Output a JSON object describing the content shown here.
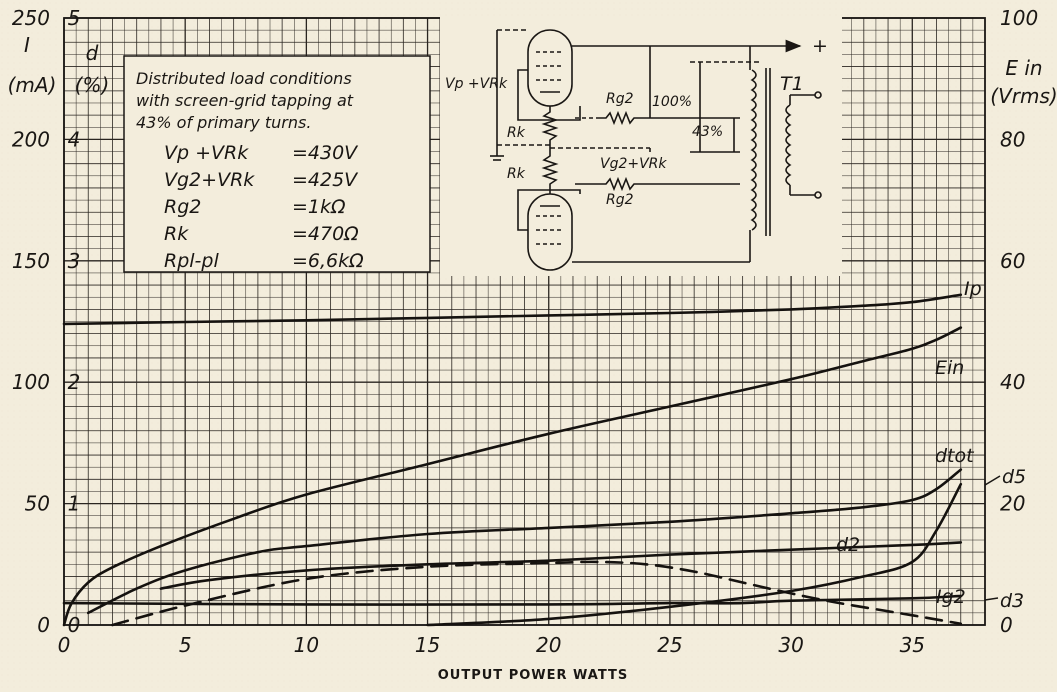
{
  "chart_data": {
    "type": "line",
    "xlabel": "OUTPUT POWER WATTS",
    "xlim": [
      0,
      38
    ],
    "x_ticks": [
      "0",
      "5",
      "10",
      "15",
      "20",
      "25",
      "30",
      "35"
    ],
    "axes": {
      "current": {
        "label_symbol": "I",
        "label_unit": "(mA)",
        "range": [
          0,
          250
        ],
        "ticks": [
          "0",
          "50",
          "100",
          "150",
          "200",
          "250"
        ]
      },
      "distortion": {
        "label_symbol": "d",
        "label_unit": "(%)",
        "range": [
          0,
          5
        ],
        "ticks": [
          "0",
          "1",
          "2",
          "3",
          "4",
          "5"
        ]
      },
      "input_voltage": {
        "label_symbol": "E in",
        "label_unit": "(Vrms)",
        "range": [
          0,
          100
        ],
        "ticks": [
          "0",
          "20",
          "40",
          "60",
          "80",
          "100"
        ]
      }
    },
    "grid": true,
    "series": [
      {
        "name": "Ip",
        "axis": "current",
        "style": "solid",
        "x": [
          0,
          5,
          10,
          15,
          20,
          25,
          30,
          33,
          35,
          37
        ],
        "y": [
          124,
          124.8,
          125.5,
          126.5,
          127.5,
          128.5,
          130,
          131.5,
          133,
          136
        ]
      },
      {
        "name": "Ein",
        "axis": "input_voltage",
        "style": "solid",
        "x": [
          0,
          0.3,
          1,
          2,
          4,
          7,
          10,
          15,
          20,
          25,
          30,
          33,
          35,
          36,
          37
        ],
        "y": [
          0,
          3.5,
          7,
          9.5,
          13,
          17.5,
          21.5,
          26.5,
          31.5,
          36,
          40.5,
          43.5,
          45.5,
          47,
          49
        ]
      },
      {
        "name": "dtot",
        "axis": "distortion",
        "style": "solid",
        "x": [
          1,
          3,
          5,
          8,
          10,
          15,
          20,
          25,
          30,
          33,
          35,
          36,
          37
        ],
        "y": [
          0.1,
          0.3,
          0.45,
          0.6,
          0.65,
          0.75,
          0.8,
          0.85,
          0.92,
          0.97,
          1.03,
          1.12,
          1.28
        ]
      },
      {
        "name": "d5",
        "axis": "distortion",
        "style": "solid",
        "x": [
          15,
          20,
          25,
          30,
          33,
          35,
          36,
          37
        ],
        "y": [
          0,
          0.05,
          0.15,
          0.28,
          0.4,
          0.52,
          0.78,
          1.16
        ]
      },
      {
        "name": "d2",
        "axis": "distortion",
        "style": "solid",
        "x": [
          4,
          6,
          10,
          15,
          20,
          25,
          30,
          35,
          37
        ],
        "y": [
          0.3,
          0.37,
          0.45,
          0.5,
          0.53,
          0.58,
          0.62,
          0.66,
          0.68
        ]
      },
      {
        "name": "Ig2",
        "axis": "current",
        "style": "dashed",
        "x": [
          2,
          5,
          10,
          15,
          20,
          22,
          24,
          26,
          28,
          30,
          32,
          35,
          37
        ],
        "y": [
          0,
          8,
          19,
          24,
          25.5,
          26,
          25,
          22,
          17.5,
          13,
          9,
          4,
          0.5
        ]
      },
      {
        "name": "d3",
        "axis": "distortion",
        "style": "solid",
        "x": [
          0,
          10,
          20,
          25,
          28,
          30,
          35,
          37
        ],
        "y": [
          0.18,
          0.17,
          0.17,
          0.18,
          0.18,
          0.2,
          0.22,
          0.24
        ]
      }
    ],
    "curve_labels": [
      "Ip",
      "Ein",
      "dtot",
      "d5",
      "d2",
      "Ig2",
      "d3"
    ]
  },
  "conditions_box": {
    "lines": [
      "Distributed load conditions",
      "with screen-grid tapping at",
      "43% of primary turns."
    ],
    "params": [
      {
        "name": "Vp +VRk",
        "value": "=430V"
      },
      {
        "name": "Vg2+VRk",
        "value": "=425V"
      },
      {
        "name": "Rg2",
        "value": "=1kΩ"
      },
      {
        "name": "Rk",
        "value": "=470Ω"
      },
      {
        "name": "Rpl-pl",
        "value": "=6,6kΩ"
      }
    ]
  },
  "schematic": {
    "labels": {
      "vp": "Vp +VRk",
      "rk_top": "Rk",
      "rk_bottom": "Rk",
      "rg2_top": "Rg2",
      "rg2_bottom": "Rg2",
      "vg2": "Vg2+VRk",
      "pct100": "100%",
      "pct43": "43%",
      "t1": "T1",
      "plus": "+"
    }
  }
}
